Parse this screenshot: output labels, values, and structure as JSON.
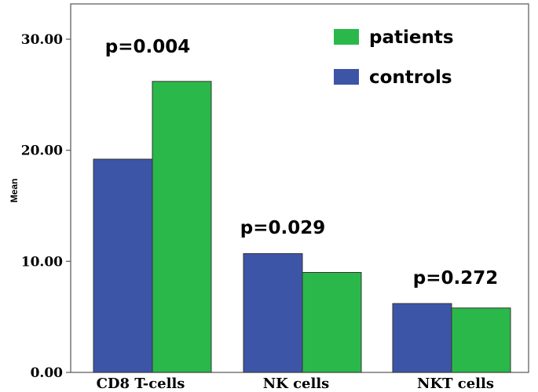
{
  "chart_data": {
    "type": "bar",
    "categories": [
      "CD8 T-cells",
      "NK cells",
      "NKT cells"
    ],
    "series": [
      {
        "name": "controls",
        "values": [
          19.2,
          10.7,
          6.2
        ],
        "color": "#3d55a7"
      },
      {
        "name": "patients",
        "values": [
          26.2,
          9.0,
          5.8
        ],
        "color": "#2bb84a"
      }
    ],
    "ylabel": "Mean",
    "ylim": [
      0,
      32
    ],
    "yticks": [
      "0.00",
      "10.00",
      "20.00",
      "30.00"
    ],
    "ytick_values": [
      0,
      10,
      20,
      30
    ],
    "annotations": [
      "p=0.004",
      "p=0.029",
      "p=0.272"
    ],
    "legend": {
      "placement": "top-right",
      "entries": [
        {
          "label": "patients",
          "color": "#2bb84a"
        },
        {
          "label": "controls",
          "color": "#3d55a7"
        }
      ]
    }
  }
}
